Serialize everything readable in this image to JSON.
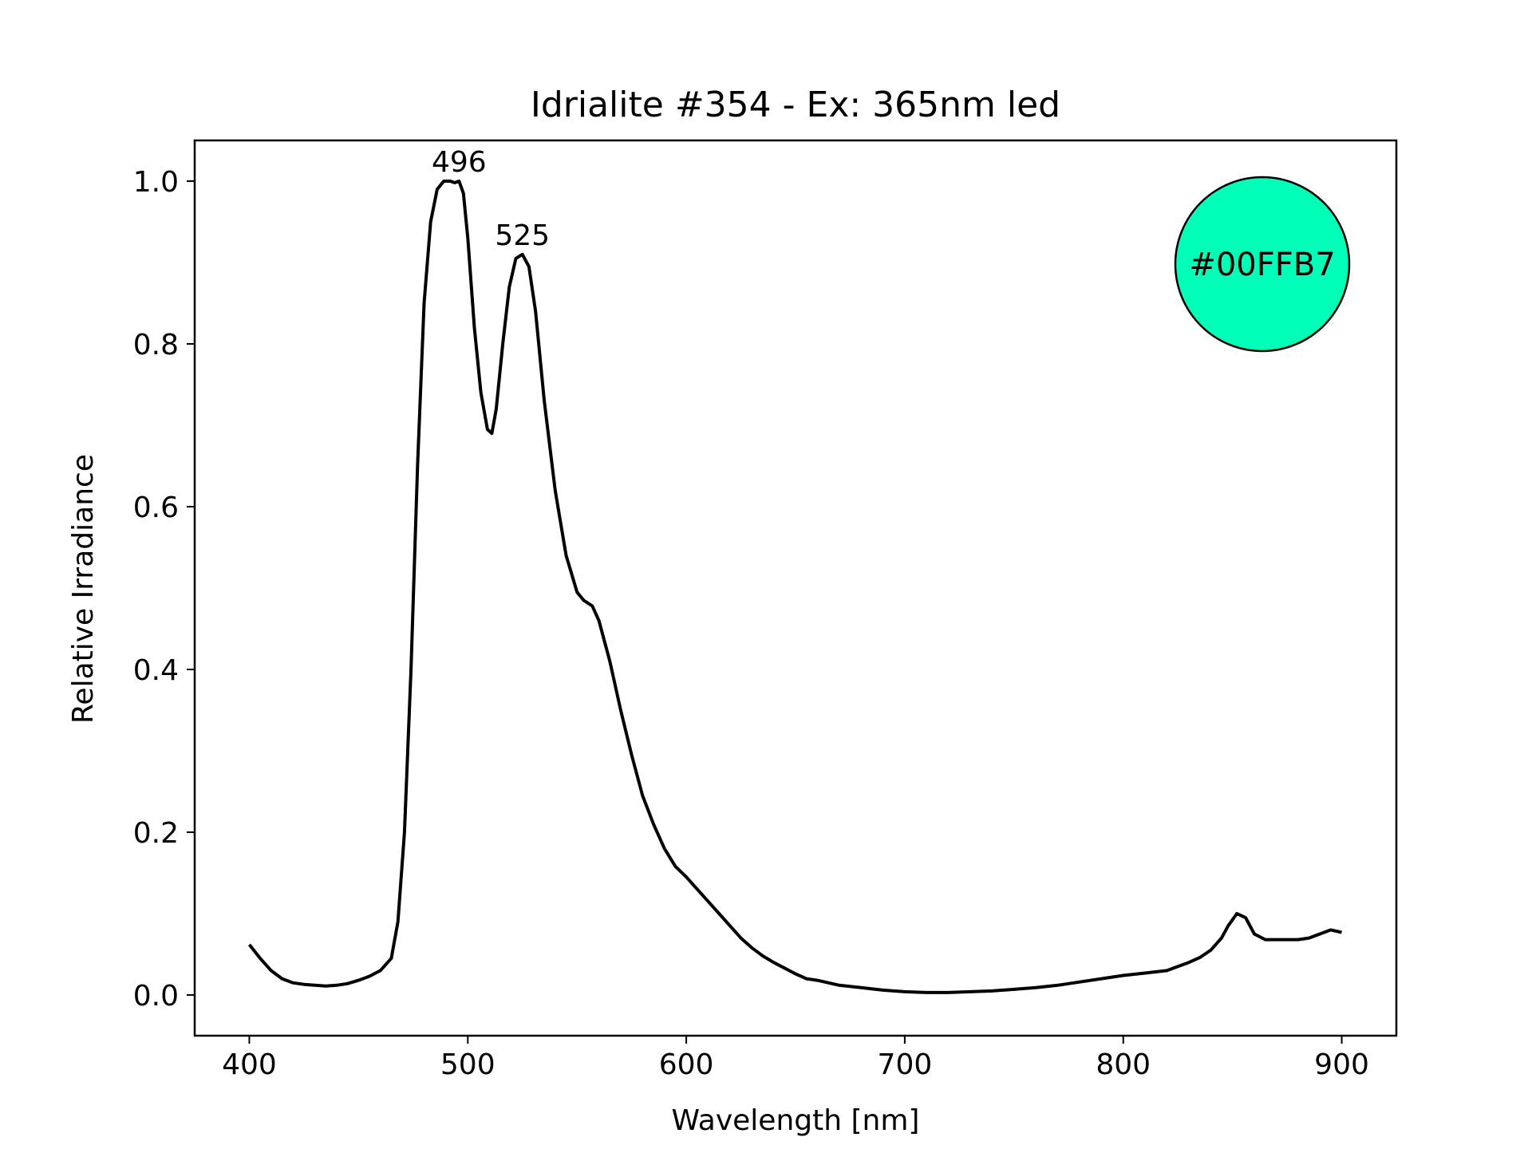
{
  "chart_data": {
    "type": "line",
    "title": "Idrialite #354 - Ex: 365nm led",
    "xlabel": "Wavelength [nm]",
    "ylabel": "Relative Irradiance",
    "xlim": [
      375,
      925
    ],
    "ylim": [
      -0.05,
      1.05
    ],
    "xticks": [
      400,
      500,
      600,
      700,
      800,
      900
    ],
    "yticks": [
      0.0,
      0.2,
      0.4,
      0.6,
      0.8,
      1.0
    ],
    "xtick_labels": [
      "400",
      "500",
      "600",
      "700",
      "800",
      "900"
    ],
    "ytick_labels": [
      "0.0",
      "0.2",
      "0.4",
      "0.6",
      "0.8",
      "1.0"
    ],
    "grid": false,
    "line_color": "#000000",
    "series": [
      {
        "x": [
          400,
          405,
          410,
          415,
          420,
          425,
          430,
          435,
          440,
          445,
          450,
          455,
          460,
          465,
          468,
          471,
          474,
          477,
          480,
          483,
          486,
          489,
          492,
          494,
          496,
          498,
          500,
          503,
          506,
          509,
          511,
          513,
          516,
          519,
          522,
          525,
          528,
          531,
          535,
          540,
          545,
          550,
          553,
          557,
          560,
          565,
          570,
          575,
          580,
          585,
          590,
          595,
          600,
          605,
          610,
          615,
          620,
          625,
          630,
          635,
          640,
          645,
          650,
          655,
          660,
          665,
          670,
          680,
          690,
          700,
          710,
          720,
          730,
          740,
          750,
          760,
          770,
          780,
          790,
          800,
          810,
          820,
          825,
          830,
          835,
          840,
          845,
          848,
          852,
          856,
          860,
          865,
          870,
          875,
          880,
          885,
          890,
          895,
          900
        ],
        "y": [
          0.062,
          0.045,
          0.03,
          0.02,
          0.015,
          0.013,
          0.012,
          0.011,
          0.012,
          0.014,
          0.018,
          0.023,
          0.03,
          0.045,
          0.09,
          0.2,
          0.4,
          0.65,
          0.85,
          0.95,
          0.99,
          1.0,
          1.0,
          0.998,
          1.0,
          0.985,
          0.93,
          0.82,
          0.74,
          0.695,
          0.69,
          0.72,
          0.8,
          0.87,
          0.905,
          0.91,
          0.895,
          0.84,
          0.73,
          0.62,
          0.54,
          0.495,
          0.485,
          0.478,
          0.46,
          0.41,
          0.35,
          0.295,
          0.245,
          0.21,
          0.18,
          0.158,
          0.145,
          0.13,
          0.115,
          0.1,
          0.085,
          0.07,
          0.058,
          0.048,
          0.04,
          0.033,
          0.026,
          0.02,
          0.018,
          0.015,
          0.012,
          0.009,
          0.006,
          0.004,
          0.003,
          0.003,
          0.004,
          0.005,
          0.007,
          0.009,
          0.012,
          0.016,
          0.02,
          0.024,
          0.027,
          0.03,
          0.035,
          0.04,
          0.046,
          0.055,
          0.07,
          0.085,
          0.1,
          0.095,
          0.075,
          0.068,
          0.068,
          0.068,
          0.068,
          0.07,
          0.075,
          0.08,
          0.077
        ]
      }
    ],
    "annotations": [
      {
        "text": "496",
        "x": 496,
        "y": 1.0
      },
      {
        "text": "525",
        "x": 525,
        "y": 0.91
      }
    ],
    "swatch": {
      "text": "#00FFB7",
      "color": "#00FFB7"
    }
  }
}
